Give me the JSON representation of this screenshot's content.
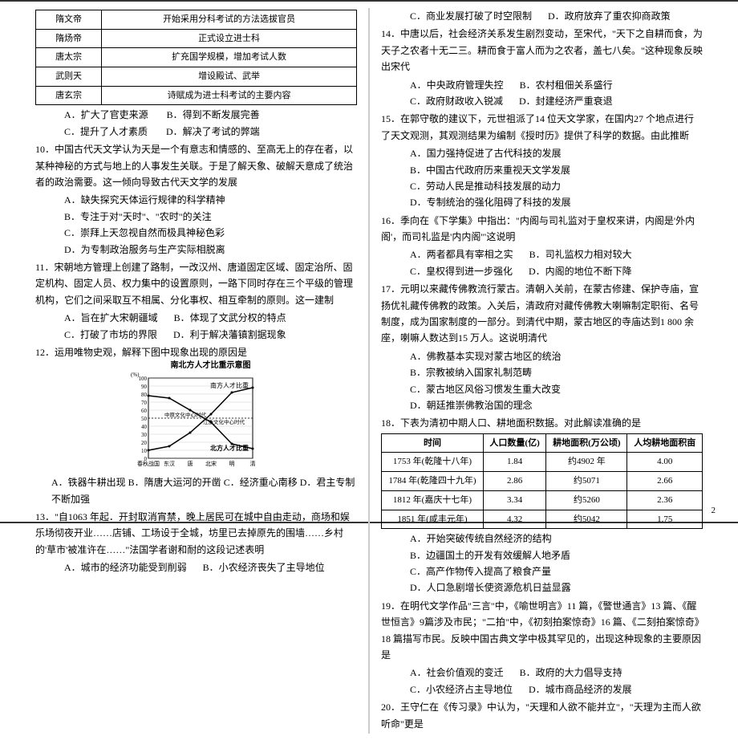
{
  "pageNumber": "2",
  "table1": {
    "rows": [
      [
        "隋文帝",
        "开始采用分科考试的方法选拔官员"
      ],
      [
        "隋炀帝",
        "正式设立进士科"
      ],
      [
        "唐太宗",
        "扩充国学规模，增加考试人数"
      ],
      [
        "武则天",
        "增设殿试、武举"
      ],
      [
        "唐玄宗",
        "诗赋成为进士科考试的主要内容"
      ]
    ]
  },
  "q9": {
    "optA": "A．扩大了官吏来源",
    "optB": "B．得到不断发展完善",
    "optC": "C．提升了人才素质",
    "optD": "D．解决了考试的弊端"
  },
  "q10": {
    "text": "10．中国古代天文学认为天是一个有意志和情感的、至高无上的存在者，以某种神秘的方式与地上的人事发生关联。于是了解天象、破解天意成了统治者的政治需要。这一倾向导致古代天文学的发展",
    "optA": "A．缺失探究天体运行规律的科学精神",
    "optB": "B．专注于对\"天时\"、\"农时\"的关注",
    "optC": "C．崇拜上天忽视自然而极具神秘色彩",
    "optD": "D．为专制政治服务与生产实际相脱离"
  },
  "q11": {
    "text": "11．宋朝地方管理上创建了路制，一改汉州、唐道固定区域、固定治所、固定机构、固定人员、权力集中的设置原则，一路下同时存在三个平级的管理机构，它们之间采取互不相属、分化事权、相互牵制的原则。这一建制",
    "optA": "A．旨在扩大宋朝疆域",
    "optB": "B．体现了文武分权的特点",
    "optC": "C．打破了市坊的界限",
    "optD": "D．利于解决藩镇割据现象"
  },
  "q12": {
    "text": "12．运用唯物史观，解释下图中现象出现的原因是",
    "optA": "A．铁器牛耕出现",
    "optB": "B．隋唐大运河的开凿",
    "optC": "C．经济重心南移",
    "optD": "D．君主专制不断加强"
  },
  "chart": {
    "title": "南北方人才比重示意图",
    "south_label": "南方人才比重",
    "north_label": "北方人才比重",
    "x_labels": [
      "春秋战国",
      "东汉",
      "唐",
      "北宋",
      "明",
      "清"
    ],
    "y_max": 100,
    "y_step": 10,
    "south_series": [
      10,
      15,
      32,
      55,
      82,
      88
    ],
    "north_series": [
      78,
      75,
      60,
      45,
      18,
      12
    ],
    "line_color": "#000",
    "grid_color": "#888",
    "bg": "#ffffff",
    "mid_labels": [
      "中原文化中心时代",
      "江浙文化中心时代"
    ]
  },
  "q13": {
    "text": "13．\"自1063 年起．开封取消宵禁，晚上居民可在城中自由走动，商场和娱乐场彻夜开业……店铺、工场设于全城，坊里已去掉原先的围墙……乡村的'草市'被准许在……\"法国学者谢和耐的这段记述表明",
    "optA": "A．城市的经济功能受到削弱",
    "optB": "B．小农经济丧失了主导地位"
  },
  "q13b": {
    "optC": "C．商业发展打破了时空限制",
    "optD": "D．政府放弃了重农抑商政策"
  },
  "q14": {
    "text": "14．中唐以后，社会经济关系发生剧烈变动，至宋代，\"天下之自耕而食，为天子之农者十无二三。耕而食于富人而为之农者，盖七八矣。\"这种现象反映出宋代",
    "optA": "A．中央政府管理失控",
    "optB": "B．农村租佃关系盛行",
    "optC": "C．政府财政收入锐减",
    "optD": "D．封建经济严重衰退"
  },
  "q15": {
    "text": "15．在郭守敬的建议下，元世祖派了14 位天文学家，在国内27 个地点进行了天文观测，其观测结果为编制《授时历》提供了科学的数据。由此推断",
    "optA": "A．国力强持促进了古代科技的发展",
    "optB": "B．中国古代政府历来重视天文学发展",
    "optC": "C．劳动人民是推动科技发展的动力",
    "optD": "D．专制统治的强化阻碍了科技的发展"
  },
  "q16": {
    "text": "16．季向在《下学集》中指出：\"内阁与司礼监对于皇权来讲，内阁是'外内阁'，而司礼监是'内内阁'\"这说明",
    "optA": "A．两者都具有宰相之实",
    "optB": "B．司礼监权力相对较大",
    "optC": "C．皇权得到进一步强化",
    "optD": "D．内阁的地位不断下降"
  },
  "q17": {
    "text": "17．元明以来藏传佛教流行蒙古。清朝入关前，在蒙古修建、保护寺庙，宣扬优礼藏传佛教的政策。入关后，清政府对藏传佛教大喇嘛制定职衔、名号制度，成为国家制度的一部分。到清代中期，蒙古地区的寺庙达到1 800 余座，喇嘛人数达到15 万人。这说明清代",
    "optA": "A．佛教基本实现对蒙古地区的统治",
    "optB": "B．宗教被纳入国家礼制范畴",
    "optC": "C．蒙古地区风俗习惯发生重大改变",
    "optD": "D．朝廷推崇佛教治国的理念"
  },
  "q18": {
    "text": "18．下表为清初中期人口、耕地面积数据。对此解读准确的是",
    "headers": [
      "时间",
      "人口数量(亿)",
      "耕地面积(万公顷)",
      "人均耕地面积亩"
    ],
    "rows": [
      [
        "1753 年(乾隆十八年)",
        "1.84",
        "约4902 年",
        "4.00"
      ],
      [
        "1784 年(乾隆四十九年)",
        "2.86",
        "约5071",
        "2.66"
      ],
      [
        "1812 年(嘉庆十七年)",
        "3.34",
        "约5260",
        "2.36"
      ],
      [
        "1851 年(咸丰元年)",
        "4.32",
        "约5042",
        "1.75"
      ]
    ],
    "optA": "A．开始突破传统自然经济的结构",
    "optB": "B．边疆国土的开发有效缓解人地矛盾",
    "optC": "C．高产作物传入提高了粮食产量",
    "optD": "D．人口急剧增长使资源危机日益显露"
  },
  "q19": {
    "text": "19．在明代文学作品\"三言\"中，《喻世明言》11 篇，《警世通言》13 篇、《醒世恒言》9篇涉及市民；\"二拍\"中，《初刻拍案惊奇》16 篇、《二刻拍案惊奇》18 篇描写市民。反映中国古典文学中极其罕见的，出现这种现象的主要原因是",
    "optA": "A．社会价值观的变迁",
    "optB": "B．政府的大力倡导支持",
    "optC": "C．小农经济占主导地位",
    "optD": "D．城市商品经济的发展"
  },
  "q20": {
    "text": "20．王守仁在《传习录》中认为，\"天理和人欲不能并立\"，\"天理为主而人欲听命\"更是"
  }
}
